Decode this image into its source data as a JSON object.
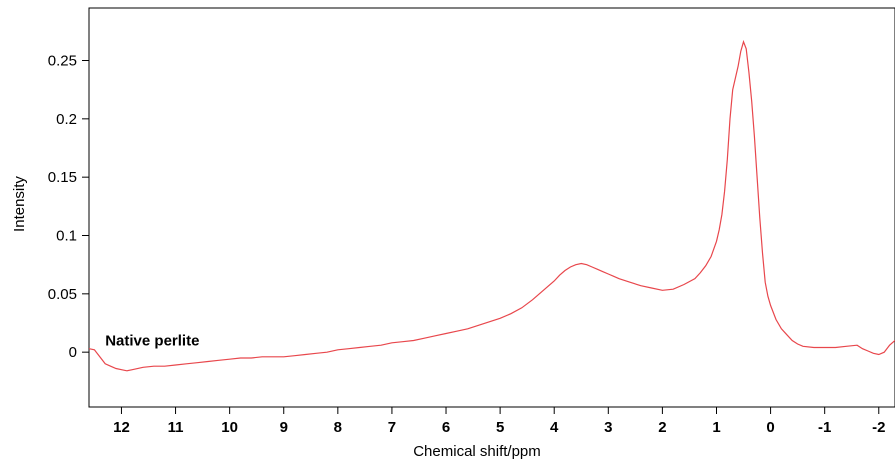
{
  "chart_data": {
    "type": "line",
    "title": "",
    "xlabel": "Chemical shift/ppm",
    "ylabel": "Intensity",
    "xlim": [
      12.6,
      -2.3
    ],
    "ylim": [
      -0.047,
      0.295
    ],
    "x_reversed": true,
    "x_ticks": [
      12,
      11,
      10,
      9,
      8,
      7,
      6,
      5,
      4,
      3,
      2,
      1,
      0,
      -1,
      -2
    ],
    "x_tick_labels": [
      "12",
      "11",
      "10",
      "9",
      "8",
      "7",
      "6",
      "5",
      "4",
      "3",
      "2",
      "1",
      "0",
      "-1",
      "-2"
    ],
    "y_ticks": [
      0,
      0.05,
      0.1,
      0.15,
      0.2,
      0.25
    ],
    "y_tick_labels": [
      "0",
      "0.05",
      "0.1",
      "0.15",
      "0.2",
      "0.25"
    ],
    "grid": false,
    "annotation": {
      "text": "Native perlite",
      "x": 12.3,
      "y": 0.01
    },
    "series": [
      {
        "color": "#e8474c",
        "x": [
          12.6,
          12.5,
          12.4,
          12.3,
          12.2,
          12.1,
          12.0,
          11.9,
          11.8,
          11.6,
          11.4,
          11.2,
          11.0,
          10.8,
          10.6,
          10.4,
          10.2,
          10.0,
          9.8,
          9.6,
          9.4,
          9.2,
          9.0,
          8.8,
          8.6,
          8.4,
          8.2,
          8.0,
          7.8,
          7.6,
          7.4,
          7.2,
          7.0,
          6.8,
          6.6,
          6.4,
          6.2,
          6.0,
          5.8,
          5.6,
          5.4,
          5.2,
          5.0,
          4.8,
          4.6,
          4.4,
          4.2,
          4.0,
          3.9,
          3.8,
          3.7,
          3.6,
          3.5,
          3.4,
          3.3,
          3.2,
          3.1,
          3.0,
          2.9,
          2.8,
          2.6,
          2.4,
          2.2,
          2.0,
          1.8,
          1.6,
          1.4,
          1.3,
          1.2,
          1.1,
          1.0,
          0.95,
          0.9,
          0.85,
          0.8,
          0.75,
          0.7,
          0.65,
          0.6,
          0.55,
          0.5,
          0.45,
          0.4,
          0.35,
          0.3,
          0.25,
          0.2,
          0.15,
          0.1,
          0.05,
          0.0,
          -0.1,
          -0.2,
          -0.3,
          -0.4,
          -0.5,
          -0.6,
          -0.8,
          -1.0,
          -1.2,
          -1.4,
          -1.6,
          -1.7,
          -1.8,
          -1.9,
          -2.0,
          -2.1,
          -2.2,
          -2.3
        ],
        "y": [
          0.003,
          0.002,
          -0.004,
          -0.01,
          -0.012,
          -0.014,
          -0.015,
          -0.016,
          -0.015,
          -0.013,
          -0.012,
          -0.012,
          -0.011,
          -0.01,
          -0.009,
          -0.008,
          -0.007,
          -0.006,
          -0.005,
          -0.005,
          -0.004,
          -0.004,
          -0.004,
          -0.003,
          -0.002,
          -0.001,
          0.0,
          0.002,
          0.003,
          0.004,
          0.005,
          0.006,
          0.008,
          0.009,
          0.01,
          0.012,
          0.014,
          0.016,
          0.018,
          0.02,
          0.023,
          0.026,
          0.029,
          0.033,
          0.038,
          0.045,
          0.053,
          0.061,
          0.066,
          0.07,
          0.073,
          0.075,
          0.076,
          0.075,
          0.073,
          0.071,
          0.069,
          0.067,
          0.065,
          0.063,
          0.06,
          0.057,
          0.055,
          0.053,
          0.054,
          0.058,
          0.063,
          0.068,
          0.074,
          0.082,
          0.095,
          0.105,
          0.118,
          0.138,
          0.165,
          0.2,
          0.225,
          0.235,
          0.245,
          0.258,
          0.266,
          0.26,
          0.24,
          0.215,
          0.185,
          0.15,
          0.115,
          0.085,
          0.06,
          0.048,
          0.04,
          0.028,
          0.02,
          0.015,
          0.01,
          0.007,
          0.005,
          0.004,
          0.004,
          0.004,
          0.005,
          0.006,
          0.003,
          0.001,
          -0.001,
          -0.002,
          0.0,
          0.006,
          0.01
        ]
      }
    ]
  }
}
